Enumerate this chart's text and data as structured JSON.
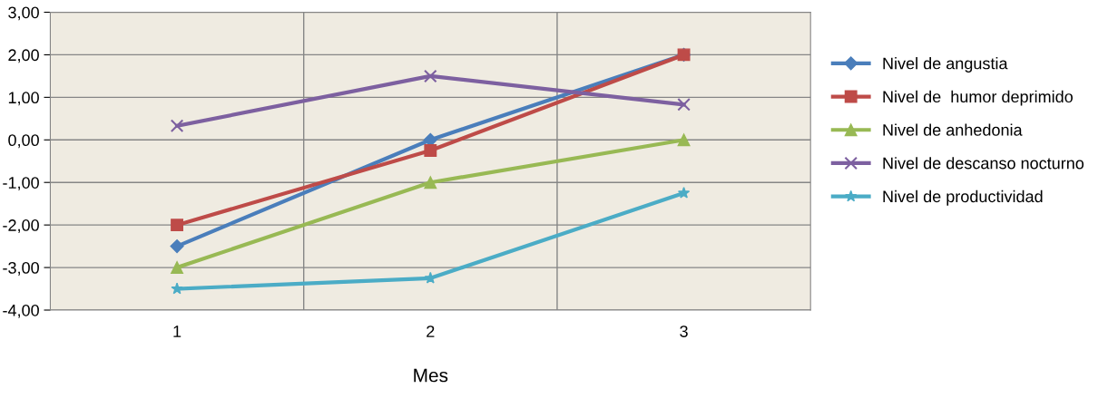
{
  "chart_data": {
    "type": "line",
    "xlabel": "Mes",
    "categories": [
      "1",
      "2",
      "3"
    ],
    "ylim": [
      -4,
      3
    ],
    "yticks": [
      {
        "value": -4,
        "label": "-4,00"
      },
      {
        "value": -3,
        "label": "-3,00"
      },
      {
        "value": -2,
        "label": "-2,00"
      },
      {
        "value": -1,
        "label": "-1,00"
      },
      {
        "value": 0,
        "label": "0,00"
      },
      {
        "value": 1,
        "label": "1,00"
      },
      {
        "value": 2,
        "label": "2,00"
      },
      {
        "value": 3,
        "label": "3,00"
      }
    ],
    "grid": true,
    "legend": "right",
    "line_style": "solid",
    "series": [
      {
        "name": "Nivel de angustia",
        "color": "#4a7ebb",
        "marker": "diamond",
        "values": [
          -2.5,
          0,
          2
        ]
      },
      {
        "name": "Nivel de  humor deprimido",
        "color": "#be4b48",
        "marker": "square",
        "values": [
          -2,
          -0.25,
          2
        ]
      },
      {
        "name": "Nivel de anhedonia",
        "color": "#98b954",
        "marker": "triangle",
        "values": [
          -3,
          -1,
          0
        ]
      },
      {
        "name": "Nivel de descanso nocturno",
        "color": "#7d60a0",
        "marker": "cross",
        "values": [
          0.33,
          1.5,
          0.83
        ]
      },
      {
        "name": "Nivel de productividad",
        "color": "#4bacc6",
        "marker": "star",
        "values": [
          -3.5,
          -3.25,
          -1.25
        ]
      }
    ]
  }
}
